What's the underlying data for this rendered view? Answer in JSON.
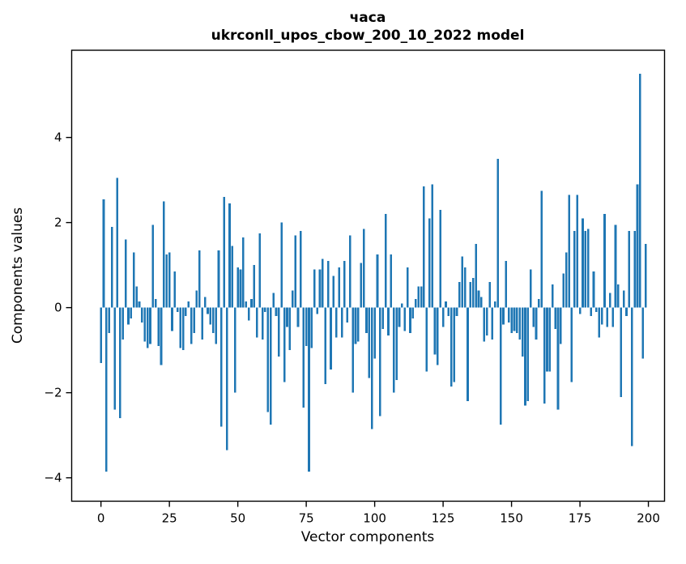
{
  "chart_data": {
    "type": "bar",
    "title_line1": "часа",
    "title_line2": "ukrconll_upos_cbow_200_10_2022 model",
    "xlabel": "Vector components",
    "ylabel": "Components values",
    "bar_color": "#1f77b4",
    "grid": false,
    "legend": null,
    "x_start": 0,
    "x_step": 1,
    "xticks": [
      0,
      25,
      50,
      75,
      100,
      125,
      150,
      175,
      200
    ],
    "yticks": [
      -4,
      -2,
      0,
      2,
      4
    ],
    "xlim": [
      -10.7,
      205.9
    ],
    "ylim": [
      -4.55,
      6.05
    ],
    "values": [
      -1.3,
      2.55,
      -3.85,
      -0.6,
      1.9,
      -2.4,
      3.05,
      -2.6,
      -0.75,
      1.6,
      -0.4,
      -0.25,
      1.3,
      0.5,
      0.15,
      -0.35,
      -0.8,
      -0.95,
      -0.85,
      1.95,
      0.2,
      -0.9,
      -1.35,
      2.5,
      1.25,
      1.3,
      -0.55,
      0.85,
      -0.1,
      -0.95,
      -1.0,
      -0.2,
      0.15,
      -0.85,
      -0.6,
      0.4,
      1.35,
      -0.75,
      0.25,
      -0.15,
      -0.4,
      -0.6,
      -0.85,
      1.35,
      -2.8,
      2.6,
      -3.35,
      2.45,
      1.45,
      -2.0,
      0.95,
      0.9,
      1.65,
      0.15,
      -0.3,
      0.2,
      1.0,
      -0.7,
      1.75,
      -0.75,
      -0.1,
      -2.45,
      -2.75,
      0.35,
      -0.2,
      -1.15,
      2.0,
      -1.75,
      -0.45,
      -1.0,
      0.4,
      1.7,
      -0.45,
      1.8,
      -2.35,
      -0.9,
      -3.85,
      -0.95,
      0.9,
      -0.15,
      0.9,
      1.15,
      -1.8,
      1.1,
      -1.45,
      0.75,
      -0.7,
      0.95,
      -0.7,
      1.1,
      -0.35,
      1.7,
      -2.0,
      -0.85,
      -0.8,
      1.05,
      1.85,
      -0.6,
      -1.65,
      -2.85,
      -1.2,
      1.25,
      -2.55,
      -0.5,
      2.2,
      -0.65,
      1.25,
      -2.0,
      -1.7,
      -0.45,
      0.1,
      -0.55,
      0.95,
      -0.6,
      -0.25,
      0.2,
      0.5,
      0.5,
      2.85,
      -1.5,
      2.1,
      2.9,
      -1.1,
      -1.35,
      2.3,
      -0.45,
      0.15,
      -0.2,
      -1.85,
      -1.75,
      -0.2,
      0.6,
      1.2,
      0.95,
      -2.2,
      0.6,
      0.7,
      1.5,
      0.4,
      0.25,
      -0.8,
      -0.65,
      0.6,
      -0.75,
      0.15,
      3.5,
      -2.75,
      -0.4,
      1.1,
      -0.35,
      -0.6,
      -0.55,
      -0.6,
      -0.75,
      -1.15,
      -2.3,
      -2.2,
      0.9,
      -0.45,
      -0.75,
      0.2,
      2.75,
      -2.25,
      -1.5,
      -1.5,
      0.55,
      -0.5,
      -2.4,
      -0.85,
      0.8,
      1.3,
      2.65,
      -1.75,
      1.8,
      2.65,
      -0.15,
      2.1,
      1.8,
      1.85,
      -0.2,
      0.85,
      -0.1,
      -0.7,
      -0.4,
      2.2,
      -0.45,
      0.35,
      -0.45,
      1.95,
      0.55,
      -2.1,
      0.4,
      -0.2,
      1.8,
      -3.25,
      1.8,
      2.9,
      5.5,
      -1.2,
      1.5
    ]
  }
}
